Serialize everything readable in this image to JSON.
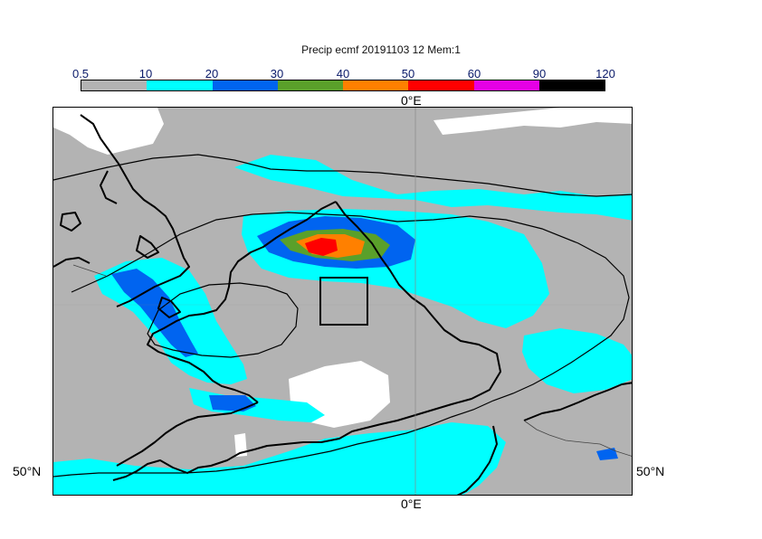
{
  "title": "Precip ecmf 20191103 12 Mem:1",
  "colorbar": {
    "ticks": [
      "0.5",
      "10",
      "20",
      "30",
      "40",
      "50",
      "60",
      "90",
      "120"
    ],
    "colors": [
      "#b3b3b3",
      "#00ffff",
      "#0064f0",
      "#5aa02a",
      "#ff8000",
      "#ff0000",
      "#e600e6",
      "#000000"
    ]
  },
  "axes": {
    "lon_top": "0°E",
    "lon_bottom": "0°E",
    "lat_left": "50°N",
    "lat_right": "50°N"
  },
  "legend_colors": {
    "none": "#ffffff",
    "light": "#b3b3b3",
    "cyan": "#00ffff",
    "blue": "#0064f0",
    "green": "#5aa02a",
    "orange": "#ff8000",
    "red": "#ff0000"
  }
}
